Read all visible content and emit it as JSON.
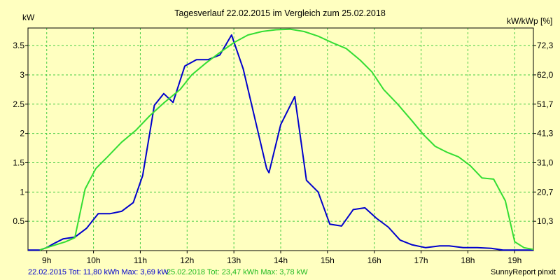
{
  "chart_data": {
    "type": "line",
    "title": "Tagesverlauf 22.02.2015 im Vergleich zum 25.02.2018",
    "ylabel_left": "kW",
    "ylabel_right": "kW/kWp [%]",
    "xlim": [
      8.6,
      19.4
    ],
    "ylim": [
      0,
      3.8
    ],
    "grid": true,
    "x_ticks": [
      {
        "x": 9,
        "label": "9h"
      },
      {
        "x": 10,
        "label": "10h"
      },
      {
        "x": 11,
        "label": "11h"
      },
      {
        "x": 12,
        "label": "12h"
      },
      {
        "x": 13,
        "label": "13h"
      },
      {
        "x": 14,
        "label": "14h"
      },
      {
        "x": 15,
        "label": "15h"
      },
      {
        "x": 16,
        "label": "16h"
      },
      {
        "x": 17,
        "label": "17h"
      },
      {
        "x": 18,
        "label": "18h"
      },
      {
        "x": 19,
        "label": "19h"
      }
    ],
    "y_ticks_left": [
      {
        "y": 0.5,
        "label": "0.5"
      },
      {
        "y": 1,
        "label": "1"
      },
      {
        "y": 1.5,
        "label": "1.5"
      },
      {
        "y": 2,
        "label": "2"
      },
      {
        "y": 2.5,
        "label": "2.5"
      },
      {
        "y": 3,
        "label": "3"
      },
      {
        "y": 3.5,
        "label": "3.5"
      }
    ],
    "y_ticks_right": [
      {
        "y": 0.5,
        "label": "10,3"
      },
      {
        "y": 1,
        "label": "20,7"
      },
      {
        "y": 1.5,
        "label": "31,0"
      },
      {
        "y": 2,
        "label": "41,3"
      },
      {
        "y": 2.5,
        "label": "51,7"
      },
      {
        "y": 3,
        "label": "62,0"
      },
      {
        "y": 3.5,
        "label": "72,3"
      }
    ],
    "series": [
      {
        "color": "#0000cc",
        "points": [
          [
            8.6,
            0.01
          ],
          [
            8.85,
            0.01
          ],
          [
            9.0,
            0.05
          ],
          [
            9.15,
            0.12
          ],
          [
            9.35,
            0.2
          ],
          [
            9.6,
            0.23
          ],
          [
            9.85,
            0.38
          ],
          [
            10.1,
            0.63
          ],
          [
            10.35,
            0.63
          ],
          [
            10.6,
            0.67
          ],
          [
            10.85,
            0.82
          ],
          [
            11.05,
            1.28
          ],
          [
            11.3,
            2.48
          ],
          [
            11.5,
            2.68
          ],
          [
            11.7,
            2.53
          ],
          [
            11.95,
            3.15
          ],
          [
            12.2,
            3.26
          ],
          [
            12.45,
            3.26
          ],
          [
            12.7,
            3.34
          ],
          [
            12.95,
            3.68
          ],
          [
            13.2,
            3.1
          ],
          [
            13.45,
            2.25
          ],
          [
            13.7,
            1.4
          ],
          [
            13.75,
            1.33
          ],
          [
            14.0,
            2.15
          ],
          [
            14.3,
            2.63
          ],
          [
            14.55,
            1.2
          ],
          [
            14.8,
            1.0
          ],
          [
            15.05,
            0.45
          ],
          [
            15.3,
            0.42
          ],
          [
            15.55,
            0.7
          ],
          [
            15.8,
            0.73
          ],
          [
            16.05,
            0.55
          ],
          [
            16.3,
            0.4
          ],
          [
            16.55,
            0.18
          ],
          [
            16.8,
            0.1
          ],
          [
            17.1,
            0.05
          ],
          [
            17.4,
            0.08
          ],
          [
            17.6,
            0.08
          ],
          [
            17.9,
            0.05
          ],
          [
            18.2,
            0.05
          ],
          [
            18.5,
            0.04
          ],
          [
            18.75,
            0.01
          ],
          [
            19.4,
            0.01
          ]
        ]
      },
      {
        "color": "#33dd33",
        "points": [
          [
            8.85,
            0.01
          ],
          [
            9.0,
            0.05
          ],
          [
            9.2,
            0.1
          ],
          [
            9.4,
            0.15
          ],
          [
            9.6,
            0.22
          ],
          [
            9.82,
            1.05
          ],
          [
            10.05,
            1.4
          ],
          [
            10.3,
            1.6
          ],
          [
            10.6,
            1.85
          ],
          [
            10.9,
            2.05
          ],
          [
            11.2,
            2.3
          ],
          [
            11.5,
            2.52
          ],
          [
            11.85,
            2.75
          ],
          [
            12.1,
            3.0
          ],
          [
            12.4,
            3.2
          ],
          [
            12.7,
            3.38
          ],
          [
            13.0,
            3.55
          ],
          [
            13.3,
            3.68
          ],
          [
            13.6,
            3.74
          ],
          [
            13.9,
            3.77
          ],
          [
            14.2,
            3.78
          ],
          [
            14.5,
            3.74
          ],
          [
            14.8,
            3.66
          ],
          [
            15.1,
            3.55
          ],
          [
            15.4,
            3.45
          ],
          [
            15.7,
            3.25
          ],
          [
            15.95,
            3.05
          ],
          [
            16.2,
            2.75
          ],
          [
            16.5,
            2.5
          ],
          [
            16.8,
            2.22
          ],
          [
            17.05,
            1.98
          ],
          [
            17.3,
            1.78
          ],
          [
            17.55,
            1.68
          ],
          [
            17.8,
            1.6
          ],
          [
            18.05,
            1.45
          ],
          [
            18.3,
            1.24
          ],
          [
            18.55,
            1.22
          ],
          [
            18.8,
            0.85
          ],
          [
            19.0,
            0.15
          ],
          [
            19.2,
            0.05
          ],
          [
            19.4,
            0.02
          ]
        ]
      }
    ]
  },
  "footer": {
    "legend_blue": "22.02.2015 Tot: 11,80 kWh Max: 3,69 kW",
    "legend_green": "25.02.2018 Tot: 23,47 kWh Max: 3,78 kW",
    "credit": "SunnyReport pinxit"
  },
  "colors": {
    "background": "#ffffc0",
    "grid": "#44cc44",
    "blue": "#0000cc",
    "green": "#33dd33"
  }
}
